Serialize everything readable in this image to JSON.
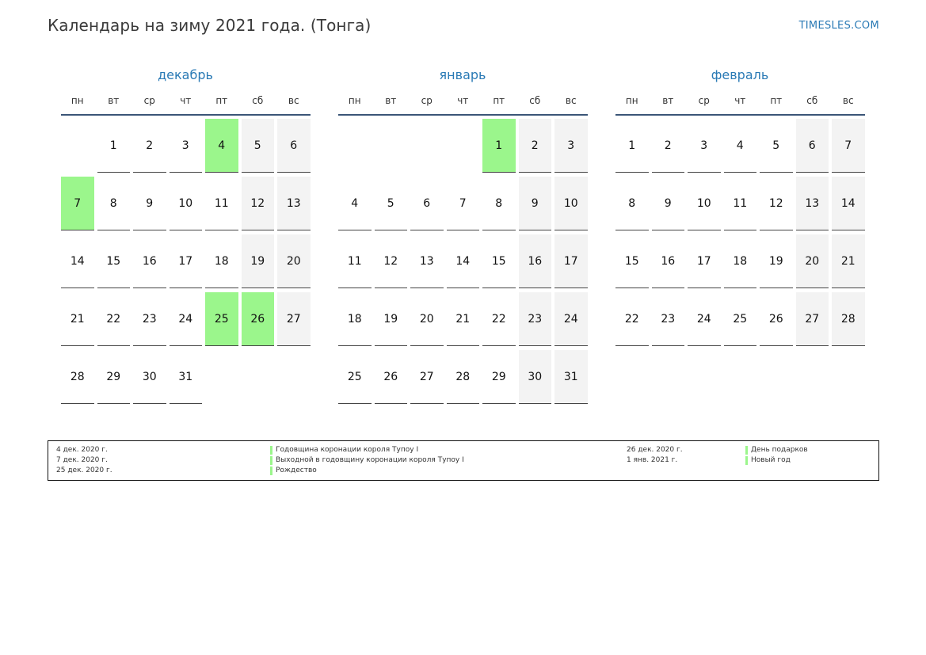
{
  "header": {
    "title": "Календарь на зиму 2021 года. (Тонга)",
    "site": "TIMESLES.COM"
  },
  "colors": {
    "accent": "#2a7ab5",
    "holiday": "#9bf68c",
    "weekend": "#f3f3f3",
    "rule": "#3b5577"
  },
  "weekdays": [
    "пн",
    "вт",
    "ср",
    "чт",
    "пт",
    "сб",
    "вс"
  ],
  "months": [
    {
      "name": "декабрь",
      "start_offset": 1,
      "days": 31,
      "holidays": [
        4,
        7,
        25,
        26
      ]
    },
    {
      "name": "январь",
      "start_offset": 4,
      "days": 31,
      "holidays": [
        1
      ]
    },
    {
      "name": "февраль",
      "start_offset": 0,
      "days": 28,
      "holidays": []
    }
  ],
  "legend": {
    "left": [
      {
        "date": "4 дек. 2020 г.",
        "name": "Годовщина коронации короля Тупоу I"
      },
      {
        "date": "7 дек. 2020 г.",
        "name": "Выходной в годовщину коронации короля Тупоу I"
      },
      {
        "date": "25 дек. 2020 г.",
        "name": "Рождество"
      }
    ],
    "right": [
      {
        "date": "26 дек. 2020 г.",
        "name": "День подарков"
      },
      {
        "date": "1 янв. 2021 г.",
        "name": "Новый год"
      }
    ]
  }
}
